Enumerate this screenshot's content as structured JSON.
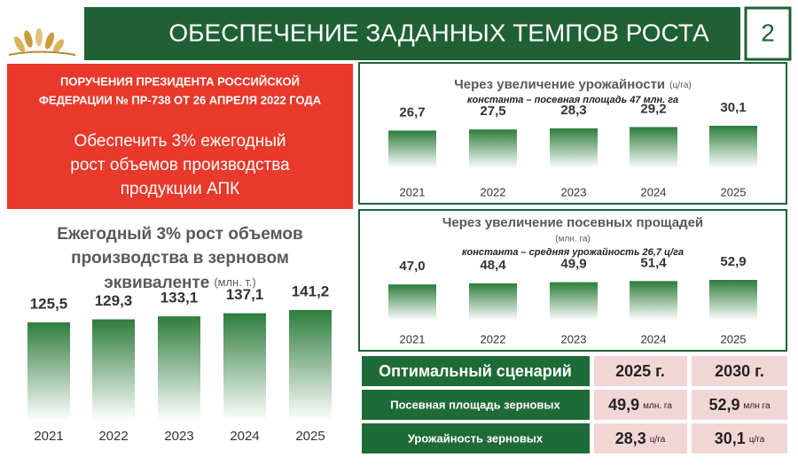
{
  "header": {
    "title": "ОБЕСПЕЧЕНИЕ ЗАДАННЫХ ТЕМПОВ РОСТА",
    "page_number": "2"
  },
  "directive": {
    "heading": [
      "ПОРУЧЕНИЯ ПРЕЗИДЕНТА РОССИЙСКОЙ",
      "ФЕДЕРАЦИИ № ПР-738 ОТ 26 АПРЕЛЯ 2022 ГОДА"
    ],
    "text": [
      "Обеспечить 3% ежегодный",
      "рост объемов производства",
      "продукции АПК"
    ]
  },
  "chart_data": [
    {
      "type": "bar",
      "title": [
        "Ежегодный 3% рост объемов",
        "производства в зерновом",
        "эквиваленте"
      ],
      "unit": "(млн. т.)",
      "categories": [
        "2021",
        "2022",
        "2023",
        "2024",
        "2025"
      ],
      "values": [
        125.5,
        129.3,
        133.1,
        137.1,
        141.2
      ],
      "value_labels": [
        "125,5",
        "129,3",
        "133,1",
        "137,1",
        "141,2"
      ],
      "color": "#2e7d3c"
    },
    {
      "type": "bar",
      "title": [
        "Через увеличение урожайности"
      ],
      "unit": "(ц/га)",
      "subtitle": "константа – посевная площадь 47 млн. га",
      "categories": [
        "2021",
        "2022",
        "2023",
        "2024",
        "2025"
      ],
      "values": [
        26.7,
        27.5,
        28.3,
        29.2,
        30.1
      ],
      "value_labels": [
        "26,7",
        "27,5",
        "28,3",
        "29,2",
        "30,1"
      ],
      "color": "#2e7d3c"
    },
    {
      "type": "bar",
      "title": [
        "Через увеличение посевных прощадей"
      ],
      "unit": "(млн. га)",
      "subtitle": "константа – средняя урожайность 26,7 ц/га",
      "categories": [
        "2021",
        "2022",
        "2023",
        "2024",
        "2025"
      ],
      "values": [
        47.0,
        48.4,
        49.9,
        51.4,
        52.9
      ],
      "value_labels": [
        "47,0",
        "48,4",
        "49,9",
        "51,4",
        "52,9"
      ],
      "color": "#2e7d3c"
    }
  ],
  "table": {
    "header": [
      "Оптимальный сценарий",
      "2025 г.",
      "2030 г."
    ],
    "rows": [
      [
        "Посевная площадь зерновых",
        {
          "value": "49,9",
          "unit": "млн. га"
        },
        {
          "value": "52,9",
          "unit": "млн га"
        }
      ],
      [
        "Урожайность зерновых",
        {
          "value": "28,3",
          "unit": "ц/га"
        },
        {
          "value": "30,1",
          "unit": "ц/га"
        }
      ]
    ]
  }
}
